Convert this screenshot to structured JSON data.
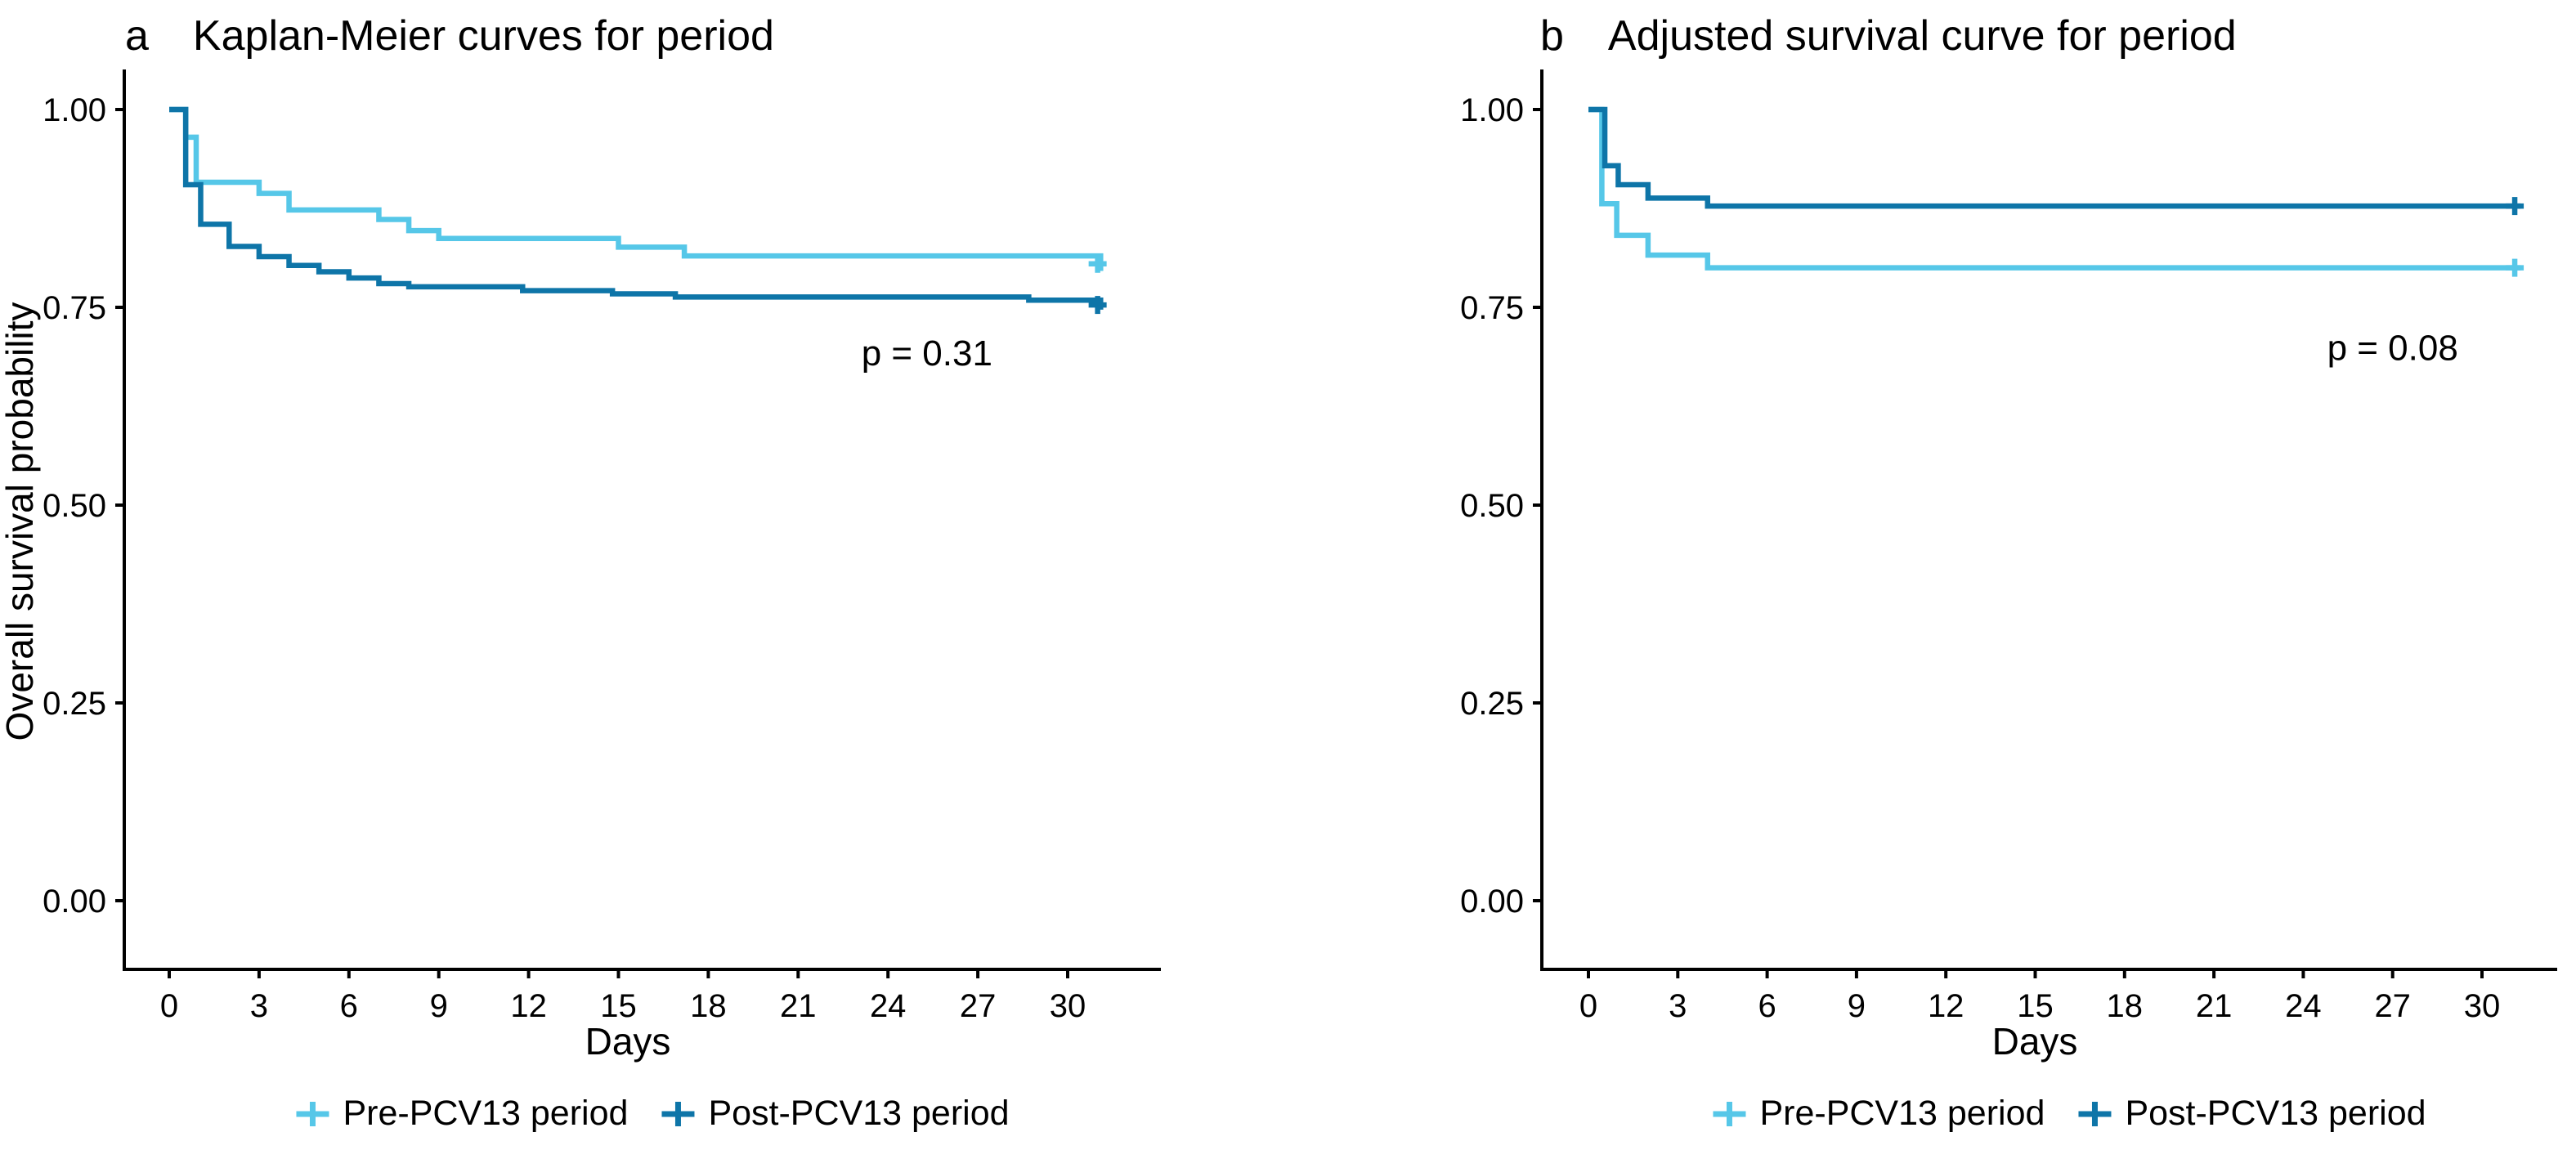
{
  "figure_type": "kaplan-meier-survival-figure",
  "colors": {
    "pre": "#56c7e8",
    "post": "#0e75a8",
    "axis": "#000000",
    "text": "#000000",
    "background": "#ffffff"
  },
  "legend": {
    "items": [
      {
        "key": "censor-plus",
        "series": "pre",
        "label": "Pre-PCV13 period"
      },
      {
        "key": "censor-plus",
        "series": "post",
        "label": "Post-PCV13 period"
      }
    ]
  },
  "chart_data": [
    {
      "type": "line",
      "subtype": "kaplan-meier-step",
      "panel_label": "a",
      "title": "Kaplan-Meier curves for period",
      "p_value_text": "p = 0.31",
      "p_value_pos": {
        "day": 25.3,
        "surv": 0.692
      },
      "xlabel": "Days",
      "ylabel": "Overall survival probability",
      "x_ticks": [
        0,
        3,
        6,
        9,
        12,
        15,
        18,
        21,
        24,
        27,
        30
      ],
      "y_ticks": [
        "1.00",
        "0.75",
        "0.50",
        "0.25",
        "0.00"
      ],
      "y_tick_values": [
        1.0,
        0.75,
        0.5,
        0.25,
        0.0
      ],
      "xlim": [
        0,
        33
      ],
      "ylim": [
        0,
        1
      ],
      "grid": false,
      "series": [
        {
          "name": "Pre-PCV13 period",
          "color_key": "pre",
          "steps": [
            [
              0,
              1.0
            ],
            [
              0.55,
              0.965
            ],
            [
              0.9,
              0.908
            ],
            [
              3,
              0.894
            ],
            [
              4,
              0.873
            ],
            [
              7,
              0.861
            ],
            [
              8,
              0.847
            ],
            [
              9,
              0.837
            ],
            [
              15,
              0.826
            ],
            [
              17.2,
              0.815
            ],
            [
              30.9,
              0.815
            ],
            [
              31.1,
              0.796
            ]
          ],
          "censors": [
            {
              "day": 31,
              "surv": 0.805
            }
          ]
        },
        {
          "name": "Post-PCV13 period",
          "color_key": "post",
          "steps": [
            [
              0,
              1.0
            ],
            [
              0.55,
              0.905
            ],
            [
              1.05,
              0.855
            ],
            [
              2,
              0.827
            ],
            [
              3,
              0.814
            ],
            [
              4,
              0.803
            ],
            [
              5,
              0.795
            ],
            [
              6,
              0.787
            ],
            [
              7,
              0.78
            ],
            [
              8,
              0.776
            ],
            [
              11.8,
              0.771
            ],
            [
              14.8,
              0.767
            ],
            [
              16.9,
              0.763
            ],
            [
              28.7,
              0.759
            ],
            [
              30.9,
              0.759
            ],
            [
              31.1,
              0.747
            ]
          ],
          "censors": [
            {
              "day": 31,
              "surv": 0.753
            }
          ]
        }
      ]
    },
    {
      "type": "line",
      "subtype": "kaplan-meier-step",
      "panel_label": "b",
      "title": "Adjusted survival curve for period",
      "p_value_text": "p = 0.08",
      "p_value_pos": {
        "day": 27.0,
        "surv": 0.699
      },
      "xlabel": "Days",
      "ylabel": "",
      "x_ticks": [
        0,
        3,
        6,
        9,
        12,
        15,
        18,
        21,
        24,
        27,
        30
      ],
      "y_ticks": [
        "1.00",
        "0.75",
        "0.50",
        "0.25",
        "0.00"
      ],
      "y_tick_values": [
        1.0,
        0.75,
        0.5,
        0.25,
        0.0
      ],
      "xlim": [
        0,
        33
      ],
      "ylim": [
        0,
        1
      ],
      "grid": false,
      "series": [
        {
          "name": "Pre-PCV13 period",
          "color_key": "pre",
          "steps": [
            [
              0,
              1.0
            ],
            [
              0.45,
              0.881
            ],
            [
              0.95,
              0.841
            ],
            [
              2,
              0.816
            ],
            [
              4,
              0.8
            ],
            [
              31.3,
              0.8
            ]
          ],
          "censors": [
            {
              "day": 31.1,
              "surv": 0.8
            }
          ]
        },
        {
          "name": "Post-PCV13 period",
          "color_key": "post",
          "steps": [
            [
              0,
              1.0
            ],
            [
              0.55,
              0.929
            ],
            [
              1,
              0.905
            ],
            [
              2,
              0.888
            ],
            [
              4,
              0.878
            ],
            [
              31.3,
              0.878
            ]
          ],
          "censors": [
            {
              "day": 31.1,
              "surv": 0.878
            }
          ]
        }
      ]
    }
  ]
}
